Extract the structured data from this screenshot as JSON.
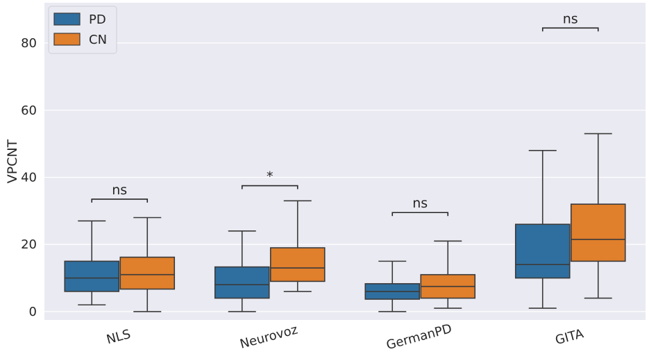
{
  "chart_data": {
    "type": "box",
    "ylabel": "VPCNT",
    "xlabel": "",
    "ylim": [
      -2.5,
      92
    ],
    "yticks": [
      0,
      20,
      40,
      60,
      80
    ],
    "ytick_labels": [
      "0",
      "20",
      "40",
      "60",
      "80"
    ],
    "grid": "horizontal",
    "categories": [
      "NLS",
      "Neurovoz",
      "GermanPD",
      "GITA"
    ],
    "legend": {
      "position": "top-left",
      "entries": [
        {
          "name": "PD",
          "color": "#2f6f9f"
        },
        {
          "name": "CN",
          "color": "#e07f2c"
        }
      ]
    },
    "series": [
      {
        "name": "PD",
        "color": "#2f6f9f",
        "boxes": [
          {
            "category": "NLS",
            "min": 2,
            "q1": 6,
            "median": 10,
            "q3": 15,
            "max": 27
          },
          {
            "category": "Neurovoz",
            "min": 0,
            "q1": 4,
            "median": 8,
            "q3": 13.3,
            "max": 24
          },
          {
            "category": "GermanPD",
            "min": 0,
            "q1": 3.7,
            "median": 6,
            "q3": 8.3,
            "max": 15
          },
          {
            "category": "GITA",
            "min": 1,
            "q1": 10,
            "median": 14,
            "q3": 26,
            "max": 48
          }
        ]
      },
      {
        "name": "CN",
        "color": "#e07f2c",
        "boxes": [
          {
            "category": "NLS",
            "min": 0,
            "q1": 6.7,
            "median": 11,
            "q3": 16.2,
            "max": 28
          },
          {
            "category": "Neurovoz",
            "min": 6,
            "q1": 9,
            "median": 13,
            "q3": 19,
            "max": 33
          },
          {
            "category": "GermanPD",
            "min": 1,
            "q1": 4,
            "median": 7.5,
            "q3": 11,
            "max": 21
          },
          {
            "category": "GITA",
            "min": 4,
            "q1": 15,
            "median": 21.5,
            "q3": 32,
            "max": 53
          }
        ]
      }
    ],
    "annotations": [
      {
        "category": "NLS",
        "label": "ns",
        "y": 33.5
      },
      {
        "category": "Neurovoz",
        "label": "*",
        "y": 37.5
      },
      {
        "category": "GermanPD",
        "label": "ns",
        "y": 29.5
      },
      {
        "category": "GITA",
        "label": "ns",
        "y": 84.5
      }
    ]
  }
}
